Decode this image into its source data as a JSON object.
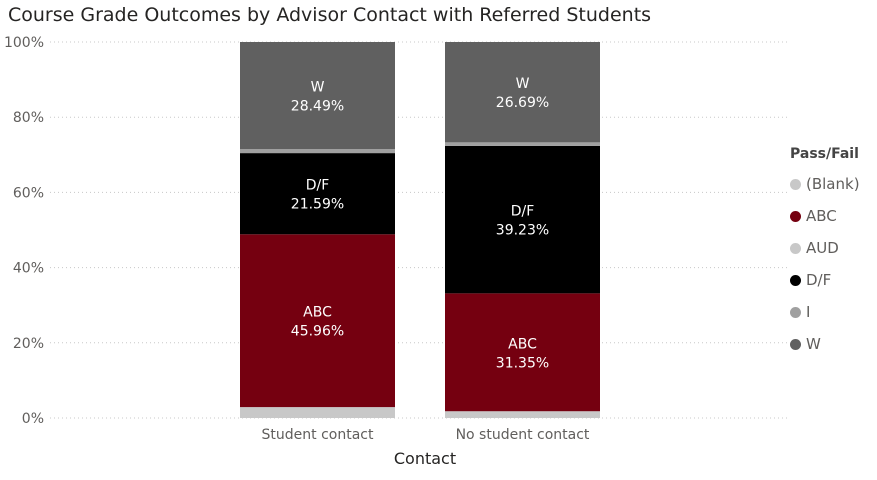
{
  "chart_data": {
    "type": "bar",
    "stacked": "100%",
    "title": "Course Grade Outcomes by Advisor Contact with Referred Students",
    "xlabel": "Contact",
    "ylabel": "",
    "ylim": [
      0,
      100
    ],
    "yticks": [
      "0%",
      "20%",
      "40%",
      "60%",
      "80%",
      "100%"
    ],
    "grid": true,
    "categories": [
      "Student contact",
      "No student contact"
    ],
    "series": [
      {
        "name": "(Blank)",
        "color": "#c8c8c8",
        "values": [
          2.9,
          1.8
        ]
      },
      {
        "name": "ABC",
        "color": "#750010",
        "values": [
          45.96,
          31.35
        ],
        "labels": [
          "45.96%",
          "31.35%"
        ]
      },
      {
        "name": "AUD",
        "color": "#c8c8c8",
        "values": [
          0,
          0
        ]
      },
      {
        "name": "D/F",
        "color": "#000000",
        "values": [
          21.59,
          39.23
        ],
        "labels": [
          "21.59%",
          "39.23%"
        ]
      },
      {
        "name": "I",
        "color": "#a0a0a0",
        "values": [
          1.06,
          0.93
        ]
      },
      {
        "name": "W",
        "color": "#606060",
        "values": [
          28.49,
          26.69
        ],
        "labels": [
          "28.49%",
          "26.69%"
        ]
      }
    ],
    "legend": {
      "title": "Pass/Fail",
      "placement": "right"
    }
  }
}
